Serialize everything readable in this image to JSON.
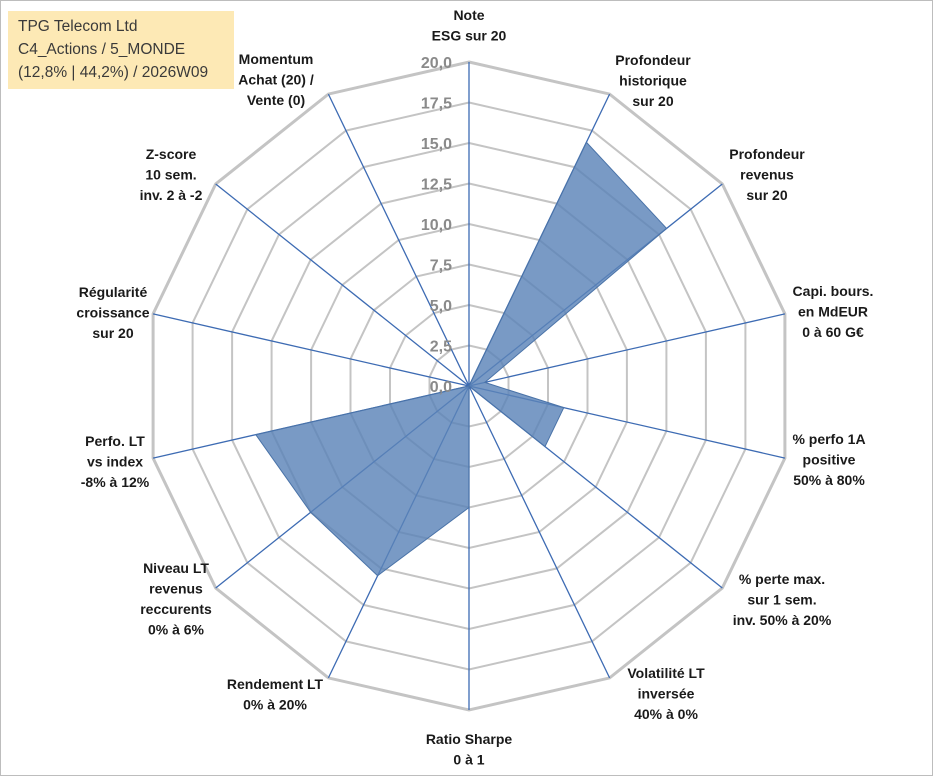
{
  "info": {
    "line1": "TPG Telecom Ltd",
    "line2": "C4_Actions / 5_MONDE",
    "line3": "(12,8% | 44,2%) / 2026W09"
  },
  "chart_data": {
    "type": "radar",
    "rmin": 0,
    "rmax": 20,
    "ticks": [
      "0,0",
      "2,5",
      "5,0",
      "7,5",
      "10,0",
      "12,5",
      "15,0",
      "17,5",
      "20,0"
    ],
    "axes": [
      {
        "label": [
          "Note",
          "ESG sur 20"
        ],
        "value": 0
      },
      {
        "label": [
          "Profondeur",
          "historique",
          "sur 20"
        ],
        "value": 16.7
      },
      {
        "label": [
          "Profondeur",
          "revenus",
          "sur 20"
        ],
        "value": 15.6
      },
      {
        "label": [
          "Capi. bours.",
          "en MdEUR",
          "0 à 60 G€"
        ],
        "value": 1.0
      },
      {
        "label": [
          "% perfo 1A",
          "positive",
          "50% à 80%"
        ],
        "value": 6.0
      },
      {
        "label": [
          "% perte max.",
          "sur 1 sem.",
          "inv. 50% à 20%"
        ],
        "value": 6.0
      },
      {
        "label": [
          "Volatilité LT",
          "inversée",
          "40% à 0%"
        ],
        "value": 0
      },
      {
        "label": [
          "Ratio Sharpe",
          "0 à 1"
        ],
        "value": 7.5
      },
      {
        "label": [
          "Rendement LT",
          "0% à 20%"
        ],
        "value": 13.0
      },
      {
        "label": [
          "Niveau LT",
          "revenus",
          "reccurents",
          "0% à 6%"
        ],
        "value": 12.5
      },
      {
        "label": [
          "Perfo. LT",
          "vs index",
          "-8% à 12%"
        ],
        "value": 13.5
      },
      {
        "label": [
          "Régularité",
          "croissance",
          "sur 20"
        ],
        "value": 0
      },
      {
        "label": [
          "Z-score",
          "10 sem.",
          "inv. 2 à -2"
        ],
        "value": 0
      },
      {
        "label": [
          "Momentum",
          "Achat (20) /",
          "Vente (0)"
        ],
        "value": 0
      }
    ],
    "series_color": "#5b84b8",
    "spoke_color": "#3d6bb3",
    "grid_color": "#c4c4c4"
  }
}
